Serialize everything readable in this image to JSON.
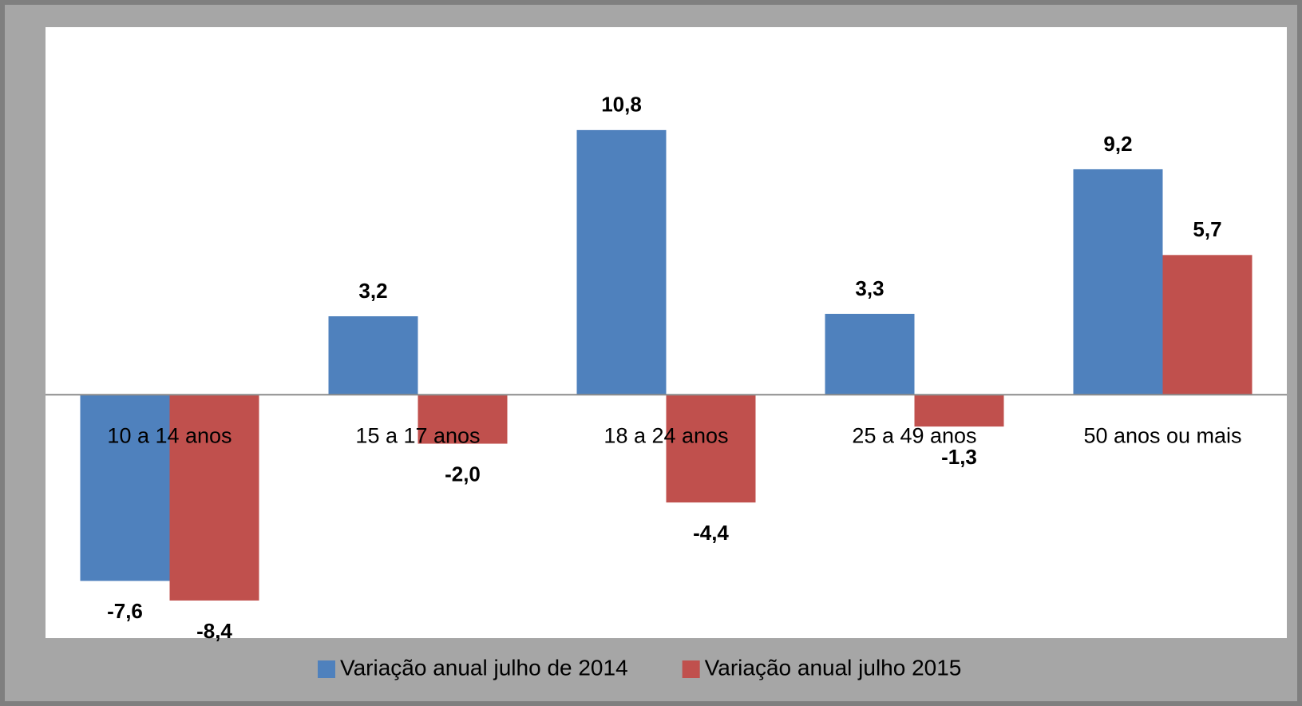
{
  "chart_data": {
    "type": "bar",
    "categories": [
      "10 a 14 anos",
      "15 a 17 anos",
      "18 a 24 anos",
      "25 a 49 anos",
      "50 anos ou mais"
    ],
    "series": [
      {
        "name": "Variação anual julho de 2014",
        "color": "#4f81bd",
        "values": [
          -7.6,
          3.2,
          10.8,
          3.3,
          9.2
        ],
        "value_labels": [
          "-7,6",
          "3,2",
          "10,8",
          "3,3",
          "9,2"
        ]
      },
      {
        "name": "Variação anual julho 2015",
        "color": "#c0504d",
        "values": [
          -8.4,
          -2.0,
          -4.4,
          -1.3,
          5.7
        ],
        "value_labels": [
          "-8,4",
          "-2,0",
          "-4,4",
          "-1,3",
          "5,7"
        ]
      }
    ],
    "ylim": [
      -10,
      15
    ],
    "legend": "bottom"
  }
}
